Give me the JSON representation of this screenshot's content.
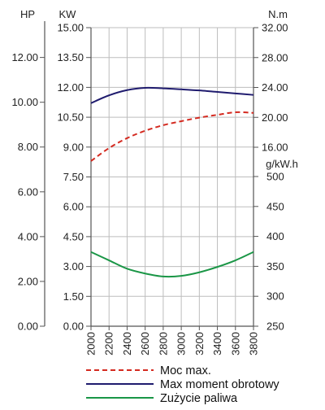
{
  "chart_data": {
    "type": "line",
    "x": [
      2000,
      2200,
      2400,
      2600,
      2800,
      3000,
      3200,
      3400,
      3600,
      3800
    ],
    "x_tick_labels": [
      "2000",
      "2200",
      "2400",
      "2600",
      "2800",
      "3000",
      "3200",
      "3400",
      "3600",
      "3800"
    ],
    "xlim": [
      2000,
      3800
    ],
    "axes": {
      "hp": {
        "unit_label": "HP",
        "range": [
          0,
          13.33
        ],
        "ticks": [
          0,
          2,
          4,
          6,
          8,
          10,
          12
        ],
        "tick_labels": [
          "0.00",
          "2.00",
          "4.00",
          "6.00",
          "8.00",
          "10.00",
          "12.00"
        ]
      },
      "kw": {
        "unit_label": "KW",
        "range": [
          0,
          15
        ],
        "ticks": [
          0,
          1.5,
          3,
          4.5,
          6,
          7.5,
          9,
          10.5,
          12,
          13.5,
          15
        ],
        "tick_labels": [
          "0.00",
          "1.50",
          "3.00",
          "4.50",
          "6.00",
          "7.50",
          "9.00",
          "10.50",
          "12.00",
          "13.50",
          "15.00"
        ]
      },
      "torque": {
        "unit_label": "N.m",
        "range": [
          16,
          32
        ],
        "ticks": [
          16,
          20,
          24,
          28,
          32
        ],
        "tick_labels": [
          "16.00",
          "20.00",
          "24.00",
          "28.00",
          "32.00"
        ]
      },
      "consumption": {
        "unit_label": "g/kW.h",
        "range": [
          250,
          500
        ],
        "ticks": [
          250,
          300,
          350,
          400,
          450,
          500
        ],
        "tick_labels": [
          "250",
          "300",
          "350",
          "400",
          "450",
          "500"
        ]
      }
    },
    "grid": true,
    "legend_position": "bottom",
    "series": [
      {
        "name": "Moc max.",
        "axis": "kw",
        "color": "#d42a20",
        "dash": true,
        "x": [
          2000,
          2200,
          2400,
          2600,
          2800,
          3000,
          3200,
          3400,
          3600,
          3800
        ],
        "values": [
          8.3,
          8.95,
          9.45,
          9.82,
          10.1,
          10.3,
          10.48,
          10.62,
          10.75,
          10.72
        ]
      },
      {
        "name": "Max moment obrotowy",
        "axis": "torque",
        "color": "#1f1b6e",
        "dash": false,
        "x": [
          2000,
          2200,
          2400,
          2600,
          2800,
          3000,
          3200,
          3400,
          3600,
          3800
        ],
        "values": [
          21.9,
          22.95,
          23.65,
          23.95,
          23.88,
          23.75,
          23.6,
          23.4,
          23.2,
          23.0
        ]
      },
      {
        "name": "Zużycie paliwa",
        "axis": "consumption",
        "color": "#1a9646",
        "dash": false,
        "x": [
          2000,
          2200,
          2400,
          2600,
          2800,
          3000,
          3200,
          3400,
          3600,
          3800
        ],
        "values": [
          374,
          360,
          346,
          338,
          333,
          334,
          340,
          349,
          360,
          374
        ]
      }
    ]
  }
}
